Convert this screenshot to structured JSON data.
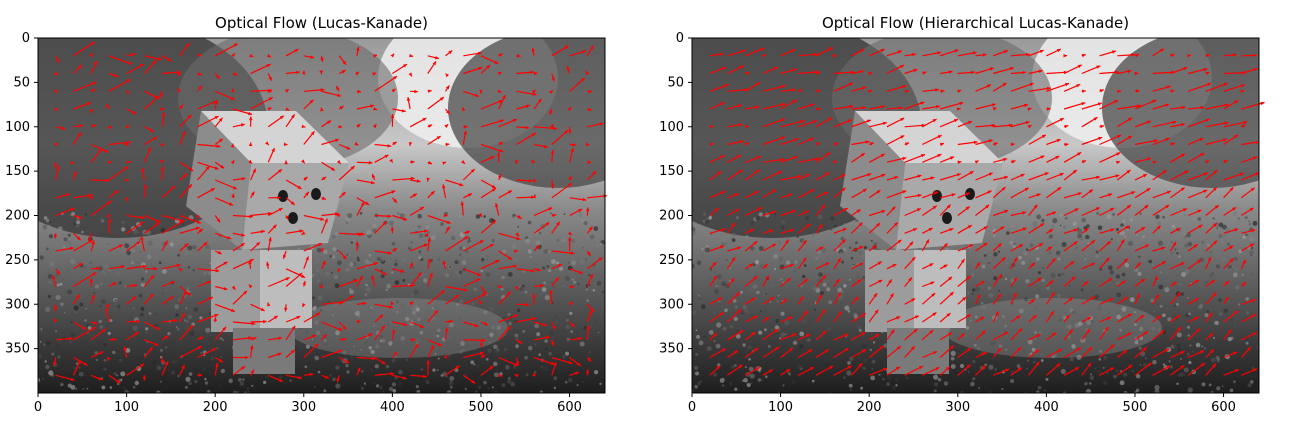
{
  "chart_data": [
    {
      "type": "quiver",
      "title": "Optical Flow (Lucas-Kanade)",
      "xlabel": "",
      "ylabel": "",
      "xlim": [
        0,
        640
      ],
      "ylim": [
        400,
        0
      ],
      "xticks": [
        0,
        100,
        200,
        300,
        400,
        500,
        600
      ],
      "yticks": [
        0,
        50,
        100,
        150,
        200,
        250,
        300,
        350
      ],
      "arrow_color": "#ff0000",
      "grid_step": 20,
      "background": "grayscale photograph of a cardboard-box robot figure on gravel",
      "flow_style": "noisy"
    },
    {
      "type": "quiver",
      "title": "Optical Flow (Hierarchical Lucas-Kanade)",
      "xlabel": "",
      "ylabel": "",
      "xlim": [
        0,
        640
      ],
      "ylim": [
        400,
        0
      ],
      "xticks": [
        0,
        100,
        200,
        300,
        400,
        500,
        600
      ],
      "yticks": [
        0,
        50,
        100,
        150,
        200,
        250,
        300,
        350
      ],
      "arrow_color": "#ff0000",
      "grid_step": 20,
      "background": "grayscale photograph of a cardboard-box robot figure on gravel",
      "flow_style": "smooth"
    }
  ]
}
